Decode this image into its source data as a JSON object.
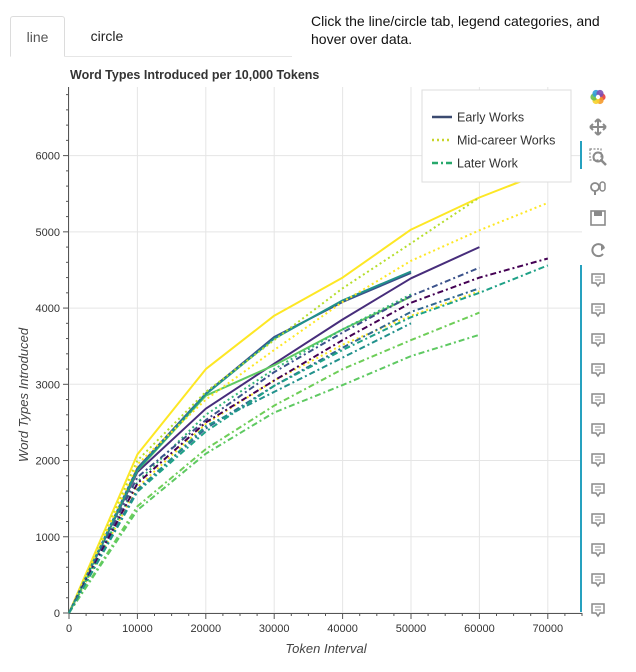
{
  "tabs": {
    "line": "line",
    "circle": "circle"
  },
  "instructions": "Click the line/circle tab, legend categories, and hover over data.",
  "toolbar": {
    "icons": [
      "bokeh-logo-icon",
      "pan-icon",
      "box-zoom-icon",
      "wheel-zoom-icon",
      "save-icon",
      "reset-icon",
      "hover-icon",
      "hover-icon",
      "hover-icon",
      "hover-icon",
      "hover-icon",
      "hover-icon",
      "hover-icon",
      "hover-icon",
      "hover-icon",
      "hover-icon",
      "hover-icon",
      "hover-icon"
    ]
  },
  "chart_data": {
    "type": "line",
    "title": "Word Types Introduced per 10,000 Tokens",
    "xlabel": "Token Interval",
    "ylabel": "Word Types Introduced",
    "xlim": [
      0,
      75000
    ],
    "ylim": [
      0,
      6900
    ],
    "xticks": [
      0,
      10000,
      20000,
      30000,
      40000,
      50000,
      60000,
      70000
    ],
    "yticks": [
      0,
      1000,
      2000,
      3000,
      4000,
      5000,
      6000
    ],
    "grid": true,
    "legend_position": "top-right",
    "legend": [
      {
        "label": "Early Works",
        "dash": "solid",
        "color": "#3b4a70"
      },
      {
        "label": "Mid-career Works",
        "dash": "dotted",
        "color": "#c8d62a"
      },
      {
        "label": "Later Work",
        "dash": "dashdot",
        "color": "#27a86b"
      }
    ],
    "series": [
      {
        "group": "Early Works",
        "color": "#fde725",
        "x": [
          0,
          10000,
          20000,
          30000,
          40000,
          50000,
          60000,
          70000
        ],
        "y": [
          0,
          2080,
          3200,
          3900,
          4400,
          5030,
          5450,
          5800
        ]
      },
      {
        "group": "Early Works",
        "color": "#3b528b",
        "x": [
          0,
          10000,
          20000,
          30000,
          40000,
          50000
        ],
        "y": [
          0,
          1900,
          2880,
          3620,
          4080,
          4460
        ]
      },
      {
        "group": "Early Works",
        "color": "#472d7b",
        "x": [
          0,
          10000,
          20000,
          30000,
          40000,
          50000,
          60000
        ],
        "y": [
          0,
          1850,
          2680,
          3270,
          3850,
          4390,
          4800
        ]
      },
      {
        "group": "Early Works",
        "color": "#5ec962",
        "x": [
          0,
          10000,
          20000,
          30000,
          40000,
          50000
        ],
        "y": [
          0,
          1870,
          2850,
          3250,
          3720,
          4150
        ]
      },
      {
        "group": "Early Works",
        "color": "#21918c",
        "x": [
          0,
          10000,
          20000,
          30000,
          40000,
          50000
        ],
        "y": [
          0,
          1880,
          2870,
          3600,
          4100,
          4480
        ]
      },
      {
        "group": "Mid-career Works",
        "color": "#b5de2b",
        "x": [
          0,
          10000,
          20000,
          30000,
          40000,
          50000,
          60000
        ],
        "y": [
          0,
          2000,
          2900,
          3580,
          4260,
          4850,
          5450
        ]
      },
      {
        "group": "Mid-career Works",
        "color": "#fde725",
        "x": [
          0,
          10000,
          20000,
          30000,
          40000,
          50000,
          60000,
          70000
        ],
        "y": [
          0,
          1950,
          2800,
          3450,
          4080,
          4620,
          5020,
          5380
        ]
      },
      {
        "group": "Mid-career Works",
        "color": "#fde725",
        "x": [
          0,
          10000,
          20000,
          30000,
          40000,
          50000,
          60000
        ],
        "y": [
          0,
          1650,
          2480,
          3050,
          3520,
          3900,
          4220
        ]
      },
      {
        "group": "Mid-career Works",
        "color": "#35b779",
        "x": [
          0,
          10000,
          20000,
          30000,
          40000,
          50000
        ],
        "y": [
          0,
          1720,
          2600,
          3200,
          3720,
          4180
        ]
      },
      {
        "group": "Later Work",
        "color": "#3b528b",
        "x": [
          0,
          10000,
          20000,
          30000,
          40000,
          50000,
          60000
        ],
        "y": [
          0,
          1780,
          2530,
          3160,
          3680,
          4160,
          4530
        ]
      },
      {
        "group": "Later Work",
        "color": "#440154",
        "x": [
          0,
          10000,
          20000,
          30000,
          40000,
          50000,
          60000,
          70000
        ],
        "y": [
          0,
          1700,
          2500,
          3050,
          3580,
          4070,
          4400,
          4650
        ]
      },
      {
        "group": "Later Work",
        "color": "#31688e",
        "x": [
          0,
          10000,
          20000,
          30000,
          40000,
          50000,
          60000
        ],
        "y": [
          0,
          1620,
          2420,
          2980,
          3480,
          3950,
          4260
        ]
      },
      {
        "group": "Later Work",
        "color": "#1fa187",
        "x": [
          0,
          10000,
          20000,
          30000,
          40000,
          50000,
          60000,
          70000
        ],
        "y": [
          0,
          1590,
          2380,
          2980,
          3450,
          3880,
          4200,
          4560
        ]
      },
      {
        "group": "Later Work",
        "color": "#6ece58",
        "x": [
          0,
          10000,
          20000,
          30000,
          40000,
          50000,
          60000
        ],
        "y": [
          0,
          1400,
          2150,
          2720,
          3200,
          3580,
          3940
        ]
      },
      {
        "group": "Later Work",
        "color": "#5ec962",
        "x": [
          0,
          10000,
          20000,
          30000,
          40000,
          50000,
          60000
        ],
        "y": [
          0,
          1350,
          2090,
          2630,
          2990,
          3370,
          3650
        ]
      },
      {
        "group": "Later Work",
        "color": "#21918c",
        "x": [
          0,
          10000,
          20000,
          30000,
          40000,
          50000
        ],
        "y": [
          0,
          1600,
          2450,
          2900,
          3350,
          3800
        ]
      }
    ]
  }
}
